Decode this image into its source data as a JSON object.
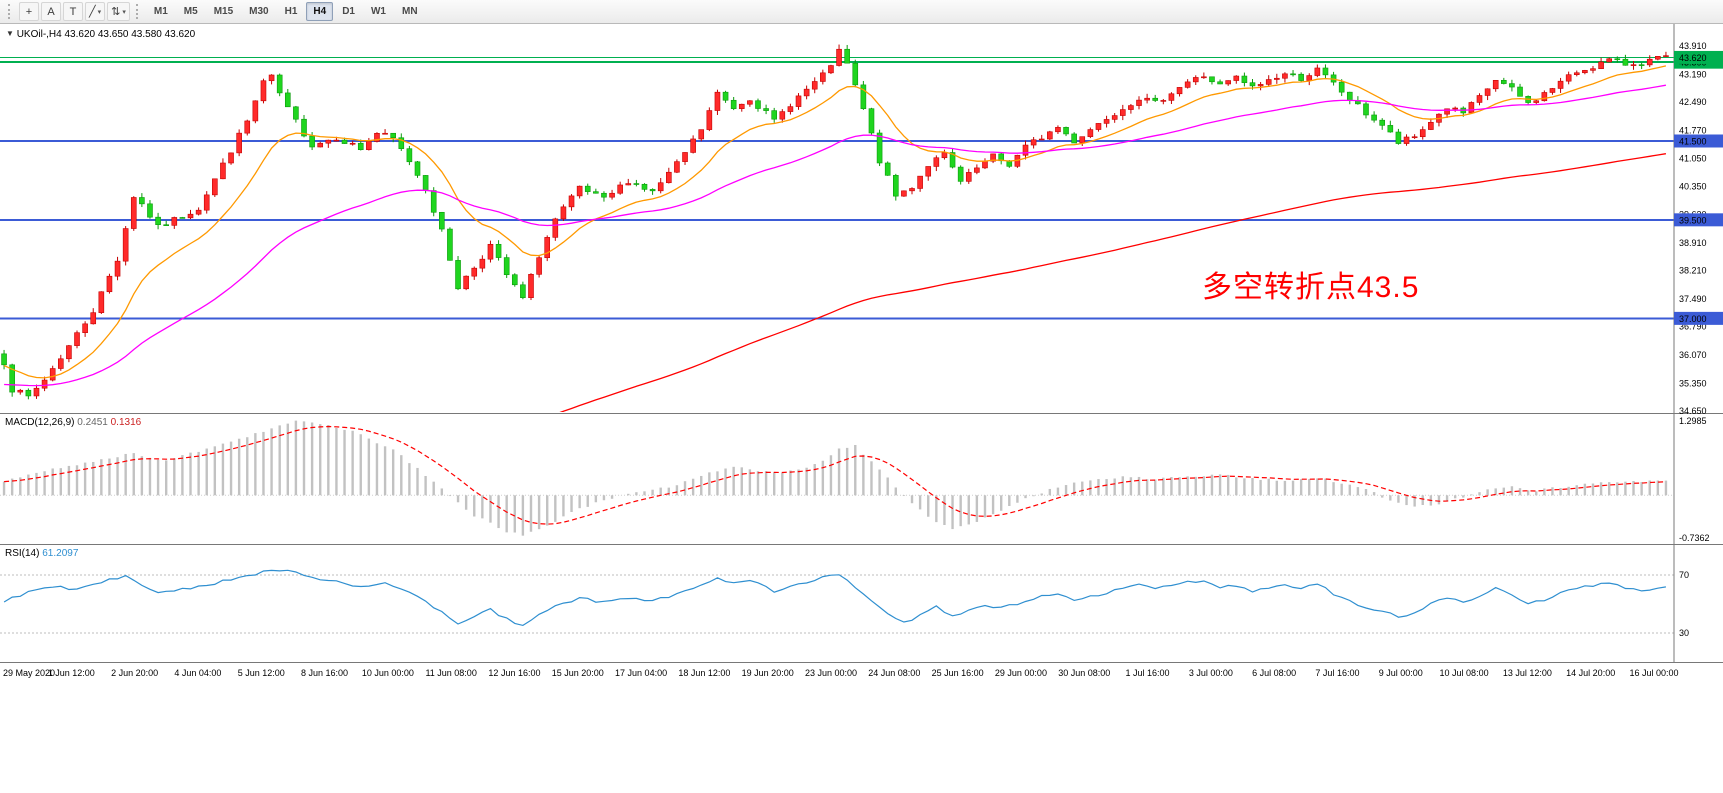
{
  "title": {
    "arrow": "▼",
    "symbol": "UKOil-,H4",
    "ohlc": "43.620 43.650 43.580 43.620"
  },
  "toolbar": {
    "icons": [
      {
        "name": "crosshair-icon",
        "glyph": "+"
      },
      {
        "name": "text-tool-icon",
        "glyph": "A"
      },
      {
        "name": "text-label-tool-icon",
        "glyph": "T"
      },
      {
        "name": "line-tools-dropdown-icon",
        "glyph": "╱",
        "caret": "▾"
      },
      {
        "name": "arrow-tools-dropdown-icon",
        "glyph": "⇅",
        "caret": "▾"
      }
    ],
    "timeframes": [
      "M1",
      "M5",
      "M15",
      "M30",
      "H1",
      "H4",
      "D1",
      "W1",
      "MN"
    ],
    "active_timeframe": "H4"
  },
  "chart_data": {
    "type": "candlestick",
    "bars": 206,
    "seed": 7,
    "first_open": 36.1,
    "noise": 0.16,
    "wick": 0.12,
    "price_range": [
      34.65,
      43.91
    ],
    "price_ticks": [
      "43.910",
      "43.190",
      "42.490",
      "41.770",
      "41.050",
      "40.350",
      "39.630",
      "38.910",
      "38.210",
      "37.490",
      "36.790",
      "36.070",
      "35.350",
      "34.650"
    ],
    "time_labels": [
      "29 May 2020",
      "1 Jun 12:00",
      "2 Jun 20:00",
      "4 Jun 04:00",
      "5 Jun 12:00",
      "8 Jun 16:00",
      "10 Jun 00:00",
      "11 Jun 08:00",
      "12 Jun 16:00",
      "15 Jun 20:00",
      "17 Jun 04:00",
      "18 Jun 12:00",
      "19 Jun 20:00",
      "23 Jun 00:00",
      "24 Jun 08:00",
      "25 Jun 16:00",
      "29 Jun 00:00",
      "30 Jun 08:00",
      "1 Jul 16:00",
      "3 Jul 00:00",
      "6 Jul 08:00",
      "7 Jul 16:00",
      "9 Jul 00:00",
      "10 Jul 08:00",
      "13 Jul 12:00",
      "14 Jul 20:00",
      "16 Jul 00:00"
    ],
    "price_anchors": [
      [
        0,
        35.9
      ],
      [
        1,
        35.2
      ],
      [
        3,
        35.0
      ],
      [
        5,
        35.45
      ],
      [
        8,
        36.3
      ],
      [
        11,
        37.2
      ],
      [
        14,
        38.5
      ],
      [
        16,
        40.1
      ],
      [
        17,
        39.9
      ],
      [
        19,
        39.3
      ],
      [
        22,
        39.6
      ],
      [
        24,
        39.8
      ],
      [
        27,
        40.9
      ],
      [
        30,
        42.0
      ],
      [
        32,
        43.0
      ],
      [
        33,
        43.1
      ],
      [
        35,
        42.3
      ],
      [
        38,
        41.4
      ],
      [
        41,
        41.6
      ],
      [
        44,
        41.3
      ],
      [
        46,
        41.7
      ],
      [
        48,
        41.55
      ],
      [
        50,
        41.0
      ],
      [
        52,
        40.3
      ],
      [
        54,
        39.2
      ],
      [
        56,
        37.8
      ],
      [
        58,
        38.3
      ],
      [
        60,
        38.85
      ],
      [
        62,
        38.1
      ],
      [
        64,
        37.5
      ],
      [
        66,
        38.6
      ],
      [
        68,
        39.5
      ],
      [
        71,
        40.3
      ],
      [
        74,
        40.0
      ],
      [
        77,
        40.5
      ],
      [
        80,
        40.2
      ],
      [
        83,
        40.9
      ],
      [
        86,
        41.8
      ],
      [
        88,
        42.7
      ],
      [
        90,
        42.35
      ],
      [
        92,
        42.6
      ],
      [
        95,
        42.0
      ],
      [
        97,
        42.45
      ],
      [
        99,
        42.8
      ],
      [
        101,
        43.15
      ],
      [
        103,
        43.75
      ],
      [
        104,
        43.45
      ],
      [
        106,
        42.3
      ],
      [
        108,
        41.0
      ],
      [
        110,
        40.1
      ],
      [
        112,
        40.35
      ],
      [
        114,
        40.9
      ],
      [
        116,
        41.15
      ],
      [
        118,
        40.45
      ],
      [
        120,
        40.8
      ],
      [
        122,
        41.1
      ],
      [
        124,
        40.9
      ],
      [
        126,
        41.35
      ],
      [
        128,
        41.6
      ],
      [
        130,
        41.85
      ],
      [
        132,
        41.5
      ],
      [
        134,
        41.8
      ],
      [
        136,
        42.1
      ],
      [
        138,
        42.35
      ],
      [
        140,
        42.6
      ],
      [
        142,
        42.45
      ],
      [
        144,
        42.75
      ],
      [
        146,
        43.0
      ],
      [
        148,
        43.15
      ],
      [
        150,
        42.9
      ],
      [
        152,
        43.1
      ],
      [
        154,
        42.85
      ],
      [
        156,
        43.05
      ],
      [
        158,
        43.2
      ],
      [
        160,
        43.1
      ],
      [
        162,
        43.3
      ],
      [
        164,
        42.95
      ],
      [
        166,
        42.55
      ],
      [
        168,
        42.2
      ],
      [
        170,
        41.9
      ],
      [
        172,
        41.45
      ],
      [
        174,
        41.6
      ],
      [
        176,
        42.0
      ],
      [
        178,
        42.35
      ],
      [
        180,
        42.2
      ],
      [
        182,
        42.6
      ],
      [
        184,
        43.05
      ],
      [
        186,
        42.8
      ],
      [
        188,
        42.45
      ],
      [
        190,
        42.7
      ],
      [
        192,
        43.0
      ],
      [
        194,
        43.25
      ],
      [
        196,
        43.4
      ],
      [
        198,
        43.55
      ],
      [
        200,
        43.45
      ],
      [
        202,
        43.5
      ],
      [
        204,
        43.58
      ],
      [
        205,
        43.62
      ]
    ],
    "colors": {
      "up": "#ff2a2a",
      "up_border": "#c40000",
      "down": "#1fd51f",
      "down_border": "#0b9b0b",
      "macd_bar": "#c2c2c2",
      "macd_signal": "#ff0000",
      "rsi_line": "#2f8fd0",
      "level_line": "#bdbdbd",
      "axis_line": "#787878"
    },
    "mas": [
      {
        "name": "ma-fast-orange",
        "period": 13,
        "init": 35.8,
        "color": "#ff9900"
      },
      {
        "name": "ma-mid-magenta",
        "period": 45,
        "init": 35.3,
        "color": "#ff00ff"
      },
      {
        "name": "ma-slow-red",
        "period": 150,
        "init": 27.0,
        "color": "#ff0000"
      }
    ],
    "hlines": [
      {
        "value": 43.5,
        "label": "43.500",
        "color": "#00b050",
        "width": 2
      },
      {
        "value": 43.62,
        "label": "43.620",
        "color": "#00b050",
        "width": 1
      },
      {
        "value": 41.5,
        "label": "41.500",
        "color": "#3b5bd6",
        "width": 2
      },
      {
        "value": 39.5,
        "label": "39.500",
        "color": "#3b5bd6",
        "width": 2
      },
      {
        "value": 37.0,
        "label": "37.000",
        "color": "#3b5bd6",
        "width": 2
      }
    ],
    "macd": {
      "label": "MACD(12,26,9)",
      "value_main": "0.2451",
      "value_signal": "0.1316",
      "range": [
        -0.7362,
        1.2985
      ],
      "axis_labels": [
        "1.2985",
        "-0.7362"
      ],
      "signal_period": 9,
      "anchors": [
        [
          0,
          0.25
        ],
        [
          6,
          0.45
        ],
        [
          12,
          0.62
        ],
        [
          16,
          0.72
        ],
        [
          20,
          0.6
        ],
        [
          26,
          0.85
        ],
        [
          32,
          1.1
        ],
        [
          36,
          1.28
        ],
        [
          40,
          1.22
        ],
        [
          44,
          1.05
        ],
        [
          48,
          0.78
        ],
        [
          52,
          0.35
        ],
        [
          55,
          0.0
        ],
        [
          58,
          -0.35
        ],
        [
          62,
          -0.62
        ],
        [
          64,
          -0.7
        ],
        [
          67,
          -0.52
        ],
        [
          70,
          -0.28
        ],
        [
          74,
          -0.08
        ],
        [
          78,
          0.04
        ],
        [
          82,
          0.14
        ],
        [
          86,
          0.34
        ],
        [
          90,
          0.5
        ],
        [
          93,
          0.42
        ],
        [
          96,
          0.38
        ],
        [
          100,
          0.52
        ],
        [
          103,
          0.8
        ],
        [
          105,
          0.85
        ],
        [
          108,
          0.45
        ],
        [
          111,
          0.0
        ],
        [
          114,
          -0.38
        ],
        [
          117,
          -0.58
        ],
        [
          120,
          -0.45
        ],
        [
          123,
          -0.25
        ],
        [
          126,
          -0.05
        ],
        [
          130,
          0.15
        ],
        [
          134,
          0.26
        ],
        [
          138,
          0.32
        ],
        [
          142,
          0.28
        ],
        [
          146,
          0.32
        ],
        [
          150,
          0.36
        ],
        [
          154,
          0.28
        ],
        [
          158,
          0.26
        ],
        [
          162,
          0.3
        ],
        [
          165,
          0.22
        ],
        [
          168,
          0.1
        ],
        [
          171,
          -0.08
        ],
        [
          174,
          -0.2
        ],
        [
          177,
          -0.15
        ],
        [
          180,
          -0.02
        ],
        [
          183,
          0.1
        ],
        [
          186,
          0.14
        ],
        [
          189,
          0.08
        ],
        [
          192,
          0.14
        ],
        [
          196,
          0.2
        ],
        [
          200,
          0.24
        ],
        [
          205,
          0.2451
        ]
      ]
    },
    "rsi": {
      "label": "RSI(14)",
      "value": "61.2097",
      "range": [
        15,
        85
      ],
      "levels": [
        70,
        30
      ],
      "anchors": [
        [
          0,
          52
        ],
        [
          3,
          58
        ],
        [
          6,
          62
        ],
        [
          9,
          60
        ],
        [
          12,
          65
        ],
        [
          15,
          69
        ],
        [
          17,
          63
        ],
        [
          19,
          57
        ],
        [
          22,
          60
        ],
        [
          25,
          63
        ],
        [
          28,
          67
        ],
        [
          32,
          72
        ],
        [
          35,
          74
        ],
        [
          38,
          68
        ],
        [
          41,
          65
        ],
        [
          44,
          62
        ],
        [
          47,
          64
        ],
        [
          50,
          58
        ],
        [
          52,
          52
        ],
        [
          54,
          44
        ],
        [
          56,
          36
        ],
        [
          58,
          41
        ],
        [
          60,
          46
        ],
        [
          62,
          40
        ],
        [
          64,
          35
        ],
        [
          66,
          42
        ],
        [
          68,
          48
        ],
        [
          71,
          54
        ],
        [
          74,
          51
        ],
        [
          77,
          54
        ],
        [
          80,
          52
        ],
        [
          83,
          57
        ],
        [
          86,
          63
        ],
        [
          88,
          68
        ],
        [
          90,
          64
        ],
        [
          92,
          66
        ],
        [
          95,
          59
        ],
        [
          97,
          62
        ],
        [
          99,
          65
        ],
        [
          101,
          68
        ],
        [
          103,
          71
        ],
        [
          105,
          62
        ],
        [
          107,
          53
        ],
        [
          109,
          44
        ],
        [
          111,
          37
        ],
        [
          113,
          42
        ],
        [
          115,
          48
        ],
        [
          117,
          41
        ],
        [
          119,
          45
        ],
        [
          121,
          49
        ],
        [
          123,
          47
        ],
        [
          126,
          52
        ],
        [
          128,
          55
        ],
        [
          130,
          57
        ],
        [
          132,
          52
        ],
        [
          134,
          55
        ],
        [
          136,
          58
        ],
        [
          138,
          60
        ],
        [
          140,
          63
        ],
        [
          142,
          60
        ],
        [
          144,
          63
        ],
        [
          146,
          65
        ],
        [
          148,
          66
        ],
        [
          150,
          61
        ],
        [
          152,
          63
        ],
        [
          154,
          59
        ],
        [
          156,
          61
        ],
        [
          158,
          63
        ],
        [
          160,
          61
        ],
        [
          162,
          64
        ],
        [
          164,
          57
        ],
        [
          166,
          52
        ],
        [
          168,
          48
        ],
        [
          170,
          45
        ],
        [
          172,
          41
        ],
        [
          174,
          44
        ],
        [
          176,
          50
        ],
        [
          178,
          54
        ],
        [
          180,
          51
        ],
        [
          182,
          56
        ],
        [
          184,
          61
        ],
        [
          186,
          56
        ],
        [
          188,
          50
        ],
        [
          190,
          53
        ],
        [
          192,
          57
        ],
        [
          194,
          61
        ],
        [
          196,
          63
        ],
        [
          198,
          65
        ],
        [
          200,
          61
        ],
        [
          202,
          59
        ],
        [
          204,
          60
        ],
        [
          205,
          61.2
        ]
      ]
    },
    "annotation": {
      "text": "多空转折点43.5",
      "color": "#ff0000"
    }
  }
}
